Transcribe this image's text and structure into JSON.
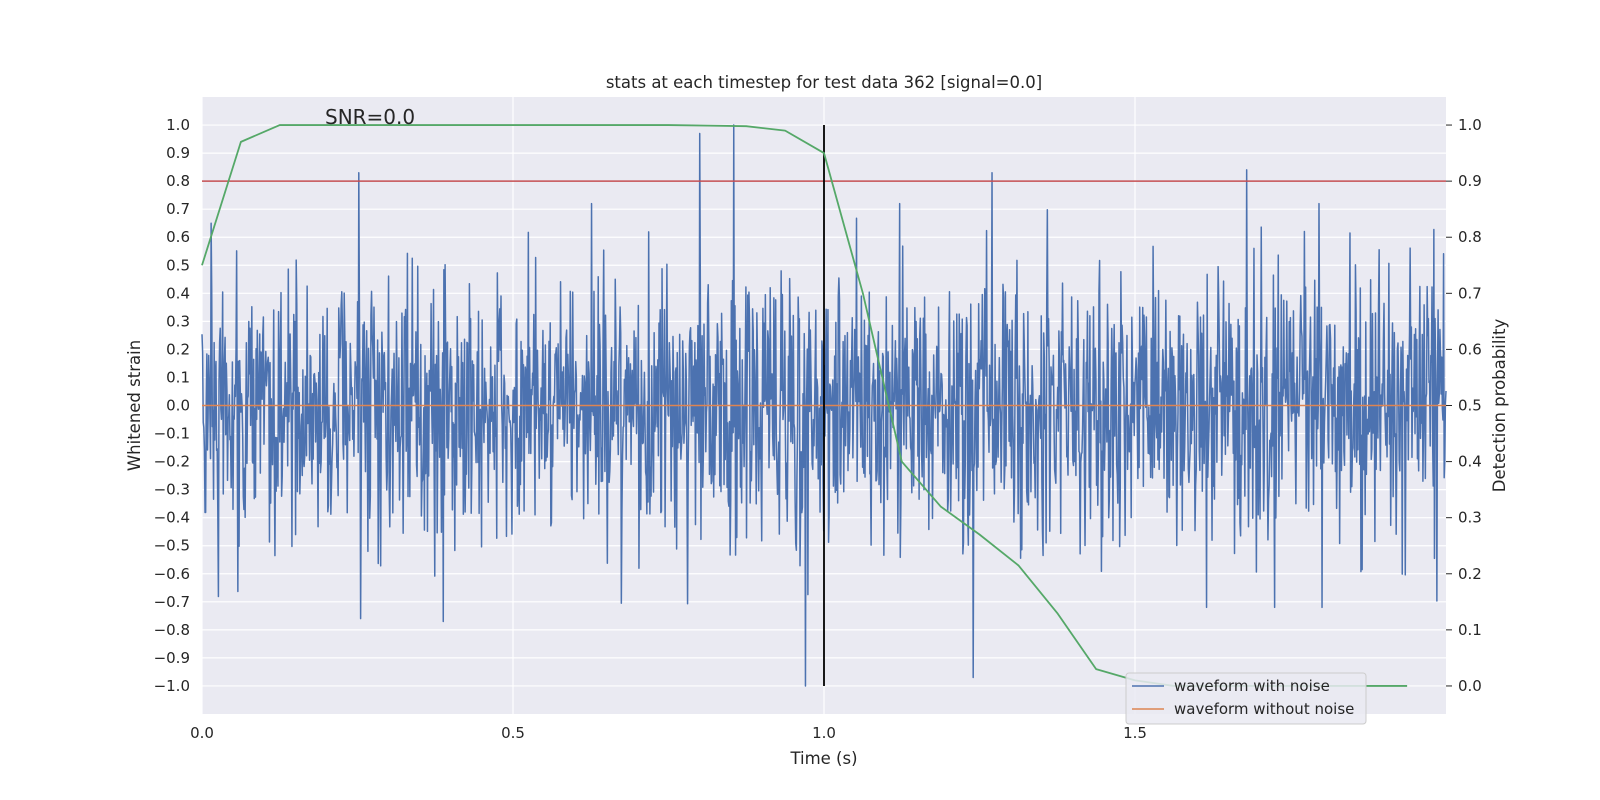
{
  "chart_data": {
    "type": "line",
    "title": "stats at each timestep for test data 362 [signal=0.0]",
    "annotation": "SNR=0.0",
    "xlabel": "Time (s)",
    "ylabel": "Whitened strain",
    "ylabel_right": "Detection probability",
    "xlim": [
      0.0,
      2.0
    ],
    "ylim": [
      -1.1,
      1.1
    ],
    "ylim_right": [
      -0.05,
      1.05
    ],
    "x_ticks": [
      "0.0",
      "0.5",
      "1.0",
      "1.5"
    ],
    "y_ticks": [
      "1.0",
      "0.9",
      "0.8",
      "0.7",
      "0.6",
      "0.5",
      "0.4",
      "0.3",
      "0.2",
      "0.1",
      "0.0",
      "−0.1",
      "−0.2",
      "−0.3",
      "−0.4",
      "−0.5",
      "−0.6",
      "−0.7",
      "−0.8",
      "−0.9",
      "−1.0"
    ],
    "y_right_ticks": [
      "1.0",
      "0.9",
      "0.8",
      "0.7",
      "0.6",
      "0.5",
      "0.4",
      "0.3",
      "0.2",
      "0.1",
      "0.0"
    ],
    "grid": true,
    "legend_position": "lower-right",
    "legend": [
      "waveform with noise",
      "waveform without noise"
    ],
    "colors": {
      "background": "#eaeaf2",
      "grid": "#ffffff",
      "noise": "#4c72b0",
      "clean": "#dd8452",
      "probability": "#55a868",
      "threshold": "#c44e52",
      "marker": "#000000"
    },
    "series": [
      {
        "name": "waveform with noise",
        "axis": "left",
        "description_points": "noise-like whitened strain, about 2048 samples over 0.0-2.0 s, amplitude mostly within -0.5..0.6 with spikes near 1.0 at t=0.86 and -1.0 at t=0.97",
        "peaks": [
          {
            "x": 0.015,
            "y": 0.65
          },
          {
            "x": 0.252,
            "y": 0.83
          },
          {
            "x": 0.255,
            "y": -0.76
          },
          {
            "x": 0.388,
            "y": -0.77
          },
          {
            "x": 0.8,
            "y": 0.97
          },
          {
            "x": 0.855,
            "y": 1.0
          },
          {
            "x": 0.97,
            "y": -1.0
          },
          {
            "x": 1.24,
            "y": -0.97
          },
          {
            "x": 1.27,
            "y": 0.83
          },
          {
            "x": 1.68,
            "y": 0.84
          }
        ]
      },
      {
        "name": "waveform without noise",
        "axis": "left",
        "x": [
          0.0,
          2.0
        ],
        "y": [
          0.0,
          0.0
        ]
      },
      {
        "axis": "right",
        "x": [
          0.0,
          0.0625,
          0.125,
          0.1875,
          0.25,
          0.3125,
          0.375,
          0.4375,
          0.5,
          0.5625,
          0.625,
          0.6875,
          0.75,
          0.8125,
          0.875,
          0.9375,
          1.0,
          1.0625,
          1.125,
          1.1875,
          1.25,
          1.3125,
          1.375,
          1.4375,
          1.5,
          1.5625,
          1.625,
          1.6875,
          1.75,
          1.8125,
          1.875,
          1.9375
        ],
        "y": [
          0.75,
          0.97,
          1.0,
          1.0,
          1.0,
          1.0,
          1.0,
          1.0,
          1.0,
          1.0,
          1.0,
          1.0,
          1.0,
          0.999,
          0.998,
          0.99,
          0.95,
          0.7,
          0.4,
          0.32,
          0.27,
          0.215,
          0.13,
          0.03,
          0.01,
          0.0,
          0.0,
          0.0,
          0.0,
          0.0,
          0.0,
          0.0
        ]
      }
    ],
    "threshold_right": 0.9,
    "vertical_line_x": 1.0
  }
}
